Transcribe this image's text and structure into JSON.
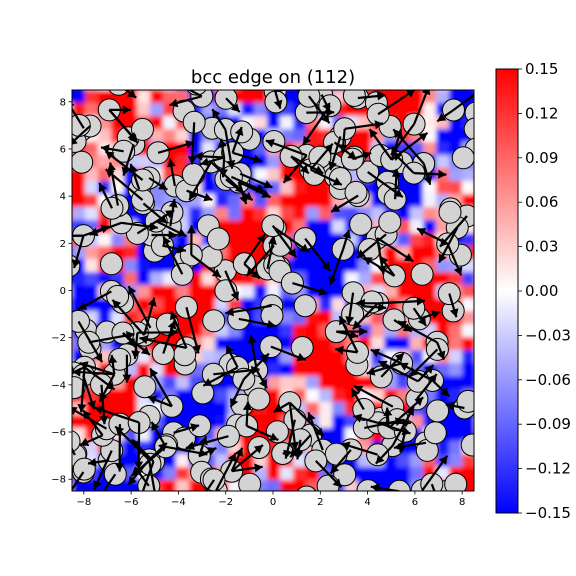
{
  "chart_data": {
    "type": "heatmap",
    "title": "bcc edge on (112)",
    "xlabel": "",
    "ylabel": "",
    "xlim": [
      -8.5,
      8.5
    ],
    "ylim": [
      -8.5,
      8.5
    ],
    "xticks": [
      -8,
      -6,
      -4,
      -2,
      0,
      2,
      4,
      6,
      8
    ],
    "yticks": [
      -8,
      -6,
      -4,
      -2,
      0,
      2,
      4,
      6,
      8
    ],
    "colorbar": {
      "min": -0.15,
      "max": 0.15,
      "ticks": [
        "0.15",
        "0.12",
        "0.09",
        "0.06",
        "0.03",
        "0.00",
        "−0.03",
        "−0.06",
        "−0.09",
        "−0.12",
        "−0.15"
      ],
      "colormap": "bwr",
      "low_color": "#0000ff",
      "mid_color": "#ffffff",
      "high_color": "#ff0000"
    },
    "markers": {
      "atom_color": "#d3d3d3",
      "atom_edge": "#000000",
      "arrow_color": "#000000"
    },
    "grid": false
  }
}
